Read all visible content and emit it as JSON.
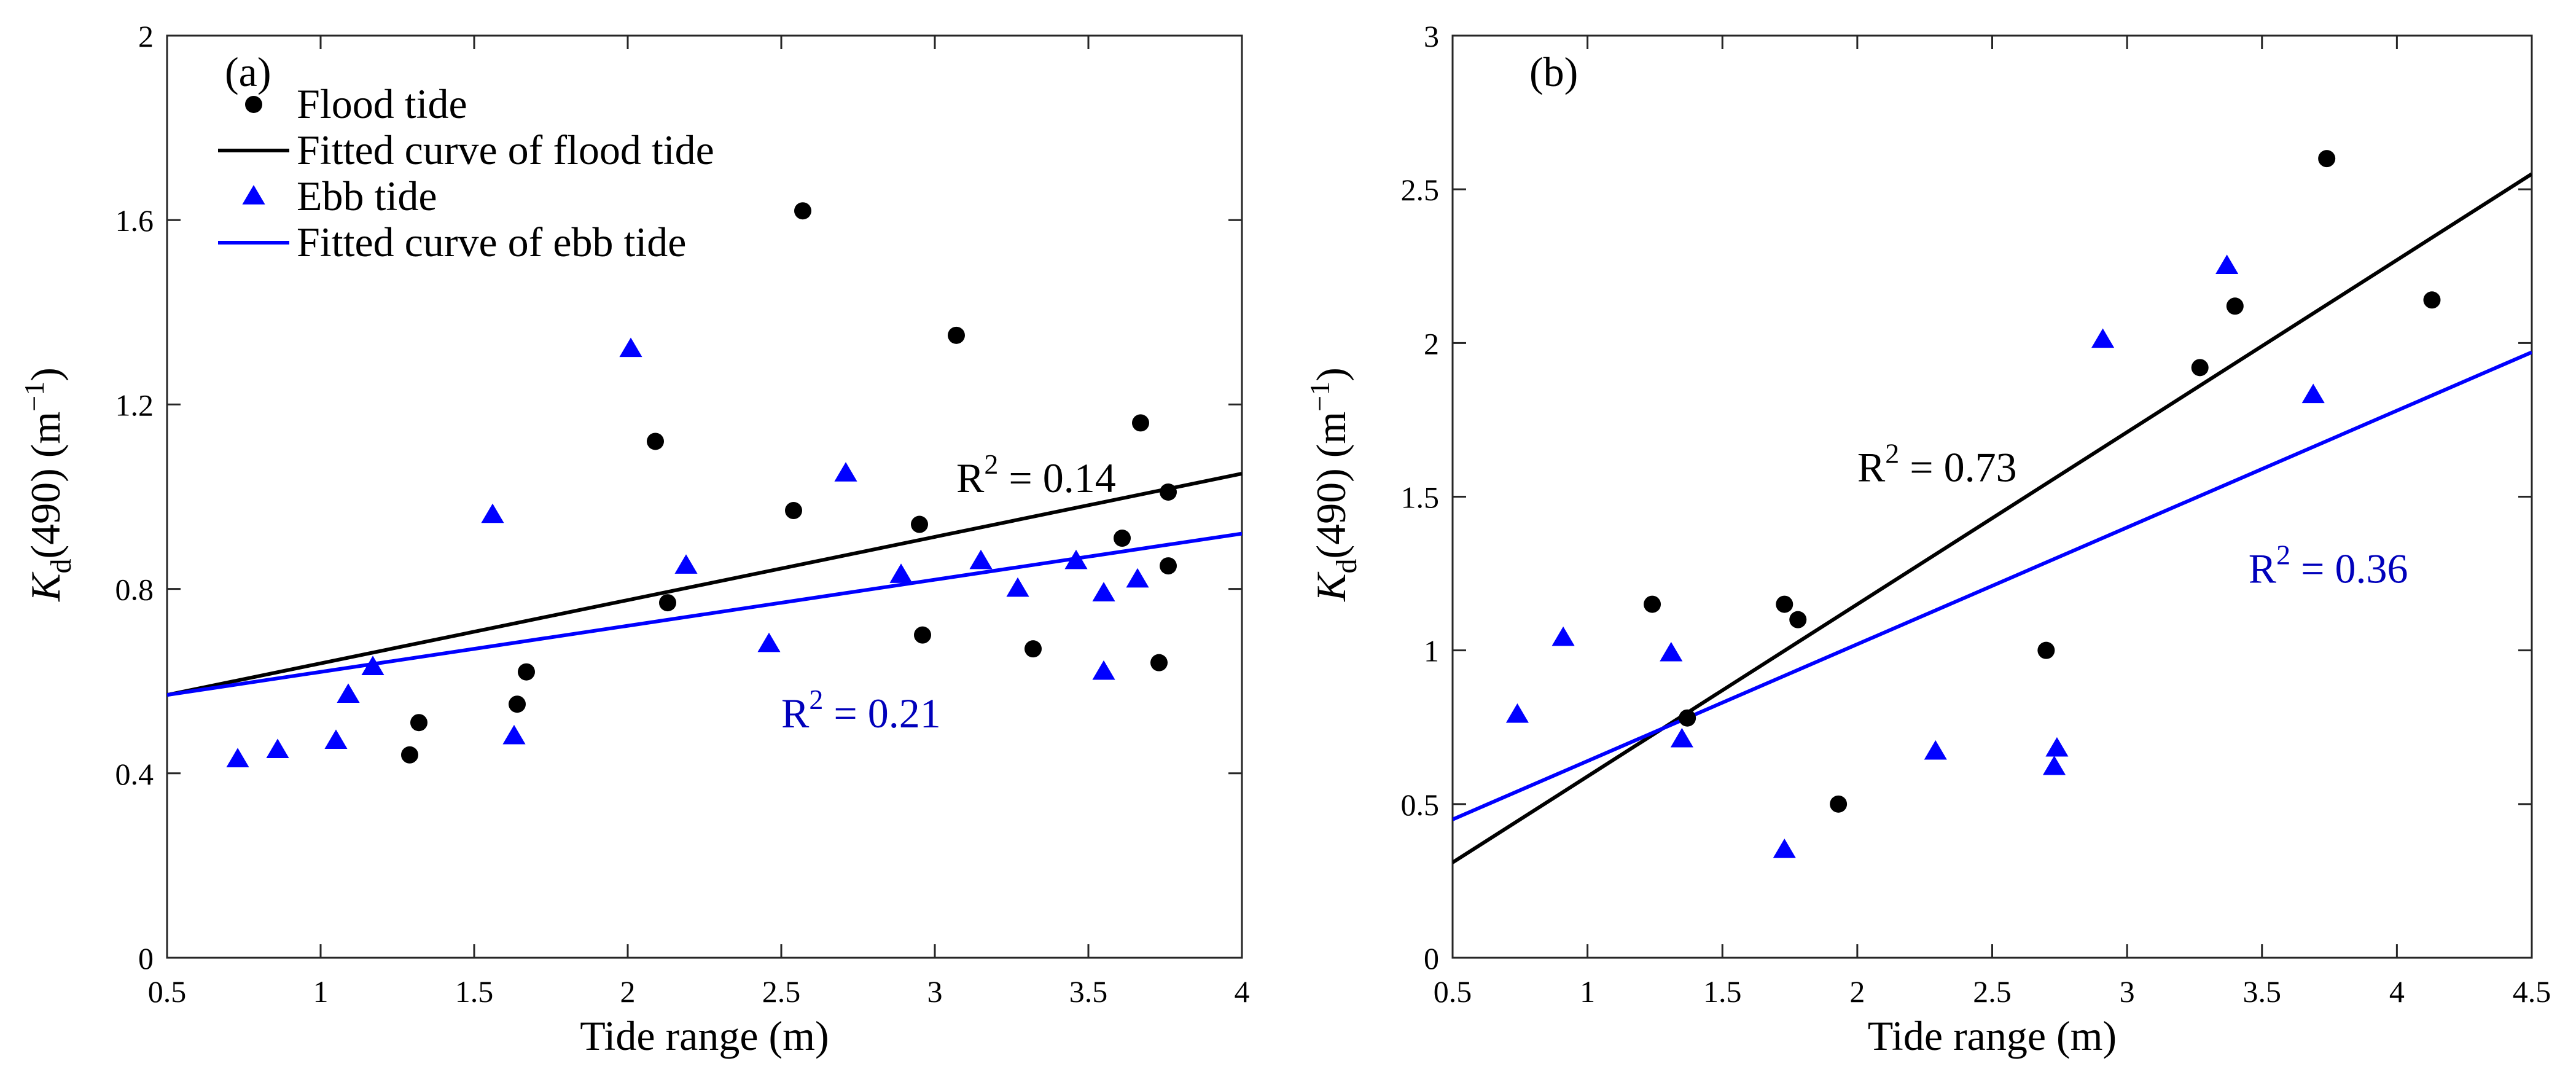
{
  "chart_data": [
    {
      "type": "scatter",
      "panel_label": "(a)",
      "xlabel": "Tide range (m)",
      "ylabel_main": "K",
      "ylabel_sub": "d",
      "ylabel_rest": "(490) (m",
      "ylabel_sup": "−1",
      "ylabel_close": ")",
      "xlim": [
        0.5,
        4
      ],
      "ylim": [
        0,
        2
      ],
      "xticks": [
        0.5,
        1,
        1.5,
        2,
        2.5,
        3,
        3.5,
        4
      ],
      "yticks": [
        0,
        0.4,
        0.8,
        1.2,
        1.6,
        2
      ],
      "xtick_labels": [
        "0.5",
        "1",
        "1.5",
        "2",
        "2.5",
        "3",
        "3.5",
        "4"
      ],
      "ytick_labels": [
        "0",
        "0.4",
        "0.8",
        "1.2",
        "1.6",
        "2"
      ],
      "legend_position": "top-left",
      "legend": [
        "Flood tide",
        "Fitted curve of flood tide",
        "Ebb tide",
        "Fitted curve of ebb tide"
      ],
      "series": [
        {
          "name": "Flood tide",
          "marker": "circle",
          "color": "#000000",
          "x": [
            1.29,
            1.32,
            1.64,
            1.67,
            2.09,
            2.13,
            2.54,
            2.57,
            2.95,
            2.96,
            3.07,
            3.32,
            3.61,
            3.67,
            3.73,
            3.76,
            3.76
          ],
          "y": [
            0.44,
            0.51,
            0.55,
            0.62,
            1.12,
            0.77,
            0.97,
            1.62,
            0.94,
            0.7,
            1.35,
            0.67,
            0.91,
            1.16,
            0.64,
            1.01,
            0.85
          ]
        },
        {
          "name": "Fitted curve of flood tide",
          "type": "line",
          "color": "#000000",
          "x": [
            0.5,
            4
          ],
          "y": [
            0.57,
            1.05
          ]
        },
        {
          "name": "Ebb tide",
          "marker": "triangle",
          "color": "#0000ff",
          "x": [
            0.73,
            0.86,
            1.05,
            1.09,
            1.17,
            1.56,
            1.63,
            2.01,
            2.19,
            2.46,
            2.71,
            2.89,
            3.15,
            3.27,
            3.46,
            3.55,
            3.55,
            3.66
          ],
          "y": [
            0.43,
            0.45,
            0.47,
            0.57,
            0.63,
            0.96,
            0.48,
            1.32,
            0.85,
            0.68,
            1.05,
            0.83,
            0.86,
            0.8,
            0.86,
            0.62,
            0.79,
            0.82
          ]
        },
        {
          "name": "Fitted curve of ebb tide",
          "type": "line",
          "color": "#0000ff",
          "x": [
            0.5,
            4
          ],
          "y": [
            0.57,
            0.92
          ]
        }
      ],
      "annotations": [
        {
          "prefix": "R",
          "sup": "2",
          "rest": " = 0.14",
          "color": "#000000",
          "x": 3.07,
          "y": 1.01
        },
        {
          "prefix": "R",
          "sup": "2",
          "rest": " = 0.21",
          "color": "#0000bb",
          "x": 2.5,
          "y": 0.5
        }
      ]
    },
    {
      "type": "scatter",
      "panel_label": "(b)",
      "xlabel": "Tide range (m)",
      "ylabel_main": "K",
      "ylabel_sub": "d",
      "ylabel_rest": "(490) (m",
      "ylabel_sup": "−1",
      "ylabel_close": ")",
      "xlim": [
        0.5,
        4.5
      ],
      "ylim": [
        0,
        3
      ],
      "xticks": [
        0.5,
        1,
        1.5,
        2,
        2.5,
        3,
        3.5,
        4,
        4.5
      ],
      "yticks": [
        0,
        0.5,
        1,
        1.5,
        2,
        2.5,
        3
      ],
      "xtick_labels": [
        "0.5",
        "1",
        "1.5",
        "2",
        "2.5",
        "3",
        "3.5",
        "4",
        "4.5"
      ],
      "ytick_labels": [
        "0",
        "0.5",
        "1",
        "1.5",
        "2",
        "2.5",
        "3"
      ],
      "series": [
        {
          "name": "Flood tide",
          "marker": "circle",
          "color": "#000000",
          "x": [
            1.24,
            1.37,
            1.73,
            1.78,
            1.93,
            2.7,
            3.27,
            3.4,
            3.74,
            4.13
          ],
          "y": [
            1.15,
            0.78,
            1.15,
            1.1,
            0.5,
            1.0,
            1.92,
            2.12,
            2.6,
            2.14
          ]
        },
        {
          "name": "Fitted curve of flood tide",
          "type": "line",
          "color": "#000000",
          "x": [
            0.5,
            4.5
          ],
          "y": [
            0.31,
            2.55
          ]
        },
        {
          "name": "Ebb tide",
          "marker": "triangle",
          "color": "#0000ff",
          "x": [
            0.74,
            0.91,
            1.31,
            1.35,
            1.73,
            2.29,
            2.73,
            2.74,
            2.91,
            3.37,
            3.69
          ],
          "y": [
            0.79,
            1.04,
            0.99,
            0.71,
            0.35,
            0.67,
            0.62,
            0.68,
            2.01,
            2.25,
            1.83
          ]
        },
        {
          "name": "Fitted curve of ebb tide",
          "type": "line",
          "color": "#0000ff",
          "x": [
            0.5,
            4.5
          ],
          "y": [
            0.45,
            1.97
          ]
        }
      ],
      "annotations": [
        {
          "prefix": "R",
          "sup": "2",
          "rest": " = 0.73",
          "color": "#000000",
          "x": 2.0,
          "y": 1.55
        },
        {
          "prefix": "R",
          "sup": "2",
          "rest": " = 0.36",
          "color": "#0000bb",
          "x": 3.45,
          "y": 1.22
        }
      ]
    }
  ]
}
